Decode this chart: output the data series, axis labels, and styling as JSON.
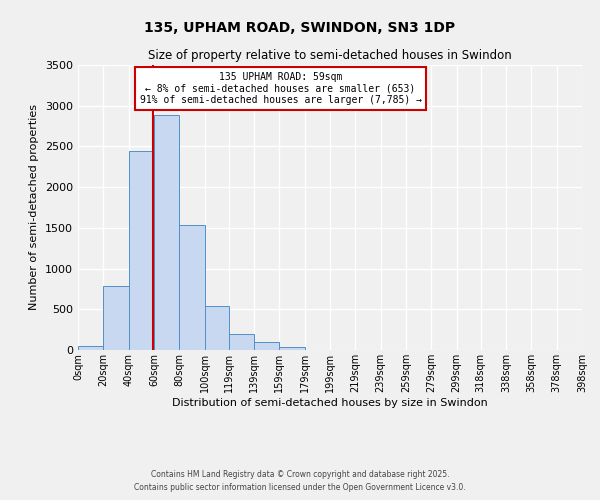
{
  "title": "135, UPHAM ROAD, SWINDON, SN3 1DP",
  "subtitle": "Size of property relative to semi-detached houses in Swindon",
  "xlabel": "Distribution of semi-detached houses by size in Swindon",
  "ylabel": "Number of semi-detached properties",
  "bar_edges": [
    0,
    20,
    40,
    60,
    80,
    100,
    119,
    139,
    159,
    179,
    199,
    219,
    239,
    259,
    279,
    299,
    318,
    338,
    358,
    378,
    398
  ],
  "bar_heights": [
    50,
    780,
    2450,
    2880,
    1530,
    545,
    200,
    95,
    35,
    5,
    2,
    0,
    0,
    0,
    0,
    0,
    0,
    0,
    0,
    0
  ],
  "bar_color": "#c8d8f0",
  "bar_edge_color": "#5090c8",
  "property_line_x": 59,
  "property_line_color": "#cc0000",
  "annotation_title": "135 UPHAM ROAD: 59sqm",
  "annotation_line1": "← 8% of semi-detached houses are smaller (653)",
  "annotation_line2": "91% of semi-detached houses are larger (7,785) →",
  "annotation_box_color": "#cc0000",
  "ylim": [
    0,
    3500
  ],
  "yticks": [
    0,
    500,
    1000,
    1500,
    2000,
    2500,
    3000,
    3500
  ],
  "background_color": "#f0f0f0",
  "grid_color": "#ffffff",
  "footer1": "Contains HM Land Registry data © Crown copyright and database right 2025.",
  "footer2": "Contains public sector information licensed under the Open Government Licence v3.0."
}
